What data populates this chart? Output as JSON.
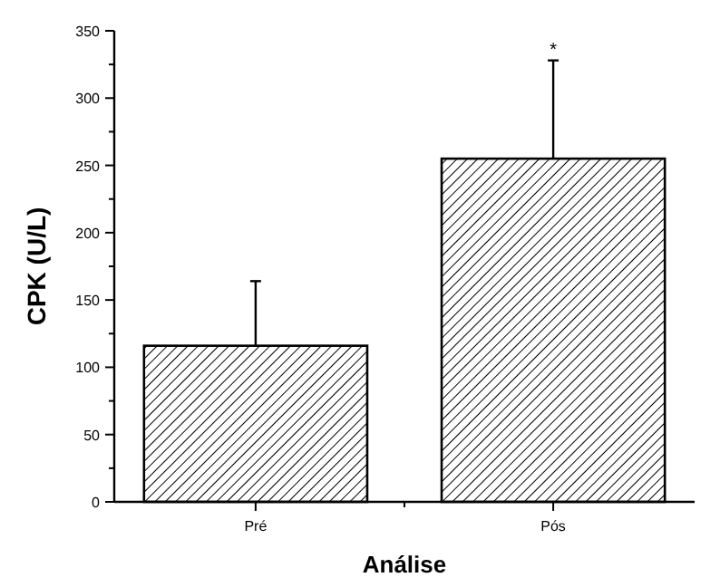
{
  "chart_data": {
    "type": "bar",
    "xlabel": "Análise",
    "ylabel": "CPK (U/L)",
    "categories": [
      "Pré",
      "Pós"
    ],
    "values": [
      116,
      255
    ],
    "errors": [
      [
        116,
        164
      ],
      [
        255,
        328
      ]
    ],
    "color": "#000000",
    "ylim": [
      0,
      350
    ],
    "yticks": [
      0,
      50,
      100,
      150,
      200,
      250,
      300,
      350
    ],
    "grid": false,
    "annotations": [
      {
        "text": "*",
        "x": "Pós",
        "y": 328
      }
    ]
  }
}
